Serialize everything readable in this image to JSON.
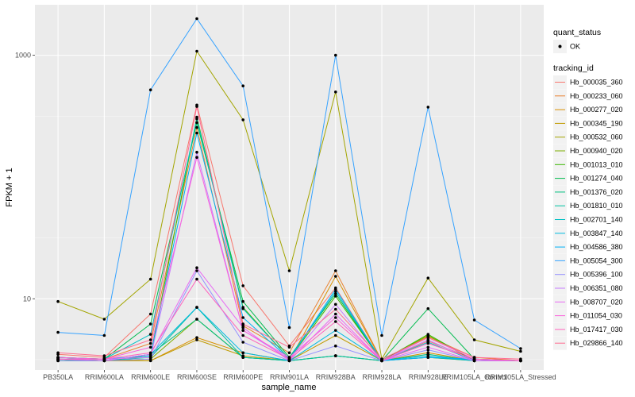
{
  "chart_data": {
    "type": "line",
    "xlabel": "sample_name",
    "ylabel": "FPKM + 1",
    "y_scale": "log10",
    "ylim": [
      2.6,
      2600
    ],
    "y_ticks": [
      {
        "value": 10,
        "label": "10"
      },
      {
        "value": 1000,
        "label": "1000"
      }
    ],
    "grid": true,
    "legend_position": "right",
    "categories": [
      "PB350LA",
      "RRIM600LA",
      "RRIM600LE",
      "RRIM600SE",
      "RRIM600PE",
      "RRIM901LA",
      "RRIM928BA",
      "RRIM928LA",
      "RRIM928LE",
      "RRIM105LA_Control",
      "RRIM105LA_Stressed"
    ],
    "shape_legend": {
      "title": "quant_status",
      "items": [
        {
          "label": "OK"
        }
      ]
    },
    "color_legend_title": "tracking_id",
    "series": [
      {
        "name": "Hb_000035_360",
        "color": "#F8766D",
        "values": [
          3.5,
          3.3,
          7.5,
          390,
          12.8,
          4.1,
          12.3,
          3.1,
          4.5,
          3.2,
          3.1
        ]
      },
      {
        "name": "Hb_000233_060",
        "color": "#EA8331",
        "values": [
          3.3,
          3.2,
          4.3,
          255,
          6.0,
          3.6,
          17.0,
          3.1,
          4.9,
          3.3,
          3.1
        ]
      },
      {
        "name": "Hb_000277_020",
        "color": "#D89000",
        "values": [
          3.2,
          3.1,
          3.1,
          4.8,
          3.6,
          3.1,
          15.3,
          3.1,
          3.6,
          3.1,
          3.1
        ]
      },
      {
        "name": "Hb_000345_190",
        "color": "#C09B00",
        "values": [
          3.1,
          3.1,
          3.1,
          4.6,
          3.4,
          3.1,
          5.0,
          3.1,
          3.3,
          3.1,
          3.1
        ]
      },
      {
        "name": "Hb_000532_060",
        "color": "#A3A500",
        "values": [
          9.5,
          6.8,
          14.5,
          1080,
          295,
          17.0,
          500,
          3.2,
          14.8,
          4.6,
          3.7
        ]
      },
      {
        "name": "Hb_000940_020",
        "color": "#7CAE00",
        "values": [
          3.2,
          3.1,
          3.2,
          6.8,
          3.3,
          3.1,
          3.4,
          3.1,
          5.0,
          3.1,
          3.1
        ]
      },
      {
        "name": "Hb_001013_010",
        "color": "#39B600",
        "values": [
          3.1,
          3.1,
          3.4,
          310,
          8.5,
          3.2,
          10.5,
          3.1,
          5.1,
          3.1,
          3.1
        ]
      },
      {
        "name": "Hb_001274_040",
        "color": "#00BB4E",
        "values": [
          3.3,
          3.2,
          6.2,
          280,
          9.5,
          3.3,
          11.0,
          3.1,
          8.3,
          3.2,
          3.1
        ]
      },
      {
        "name": "Hb_001376_020",
        "color": "#00BF7D",
        "values": [
          3.2,
          3.1,
          3.5,
          6.8,
          3.3,
          3.1,
          3.4,
          3.1,
          3.5,
          3.1,
          3.1
        ]
      },
      {
        "name": "Hb_001810_010",
        "color": "#00C1A3",
        "values": [
          3.1,
          3.1,
          3.3,
          8.5,
          3.3,
          3.1,
          3.4,
          3.1,
          3.3,
          3.1,
          3.1
        ]
      },
      {
        "name": "Hb_002701_140",
        "color": "#00BFC4",
        "values": [
          3.3,
          3.2,
          5.1,
          300,
          8.3,
          3.2,
          11.5,
          3.1,
          4.4,
          3.1,
          3.1
        ]
      },
      {
        "name": "Hb_003847_140",
        "color": "#00BAE0",
        "values": [
          3.2,
          3.1,
          3.5,
          8.5,
          3.6,
          3.1,
          5.5,
          3.1,
          3.4,
          3.1,
          3.1
        ]
      },
      {
        "name": "Hb_004586_380",
        "color": "#00B0F6",
        "values": [
          3.2,
          3.2,
          3.4,
          230,
          7.0,
          3.2,
          12.0,
          3.1,
          3.3,
          3.2,
          3.1
        ]
      },
      {
        "name": "Hb_005054_300",
        "color": "#35A2FF",
        "values": [
          5.3,
          5.0,
          520,
          2000,
          560,
          5.8,
          1000,
          5.0,
          375,
          6.7,
          3.9
        ]
      },
      {
        "name": "Hb_005396_100",
        "color": "#9590FF",
        "values": [
          3.1,
          3.1,
          3.2,
          17.0,
          4.4,
          3.1,
          4.1,
          3.1,
          3.8,
          3.1,
          3.1
        ]
      },
      {
        "name": "Hb_006351_080",
        "color": "#C77CFF",
        "values": [
          3.2,
          3.2,
          3.3,
          160,
          5.5,
          3.2,
          9.0,
          3.1,
          4.6,
          3.1,
          3.1
        ]
      },
      {
        "name": "Hb_008707_020",
        "color": "#E76BF3",
        "values": [
          3.2,
          3.1,
          3.5,
          18.0,
          5.8,
          3.1,
          7.5,
          3.1,
          4.0,
          3.1,
          3.1
        ]
      },
      {
        "name": "Hb_011054_030",
        "color": "#FA62DB",
        "values": [
          3.3,
          3.2,
          4.0,
          145,
          5.5,
          3.3,
          7.0,
          3.1,
          4.8,
          3.2,
          3.1
        ]
      },
      {
        "name": "Hb_017417_030",
        "color": "#FF62BC",
        "values": [
          3.2,
          3.2,
          3.6,
          14.5,
          5.0,
          3.2,
          6.5,
          3.1,
          4.3,
          3.2,
          3.1
        ]
      },
      {
        "name": "Hb_029866_140",
        "color": "#FF6C91",
        "values": [
          3.6,
          3.4,
          4.6,
          380,
          6.2,
          4.0,
          8.2,
          3.2,
          4.8,
          3.3,
          3.2
        ]
      }
    ]
  }
}
